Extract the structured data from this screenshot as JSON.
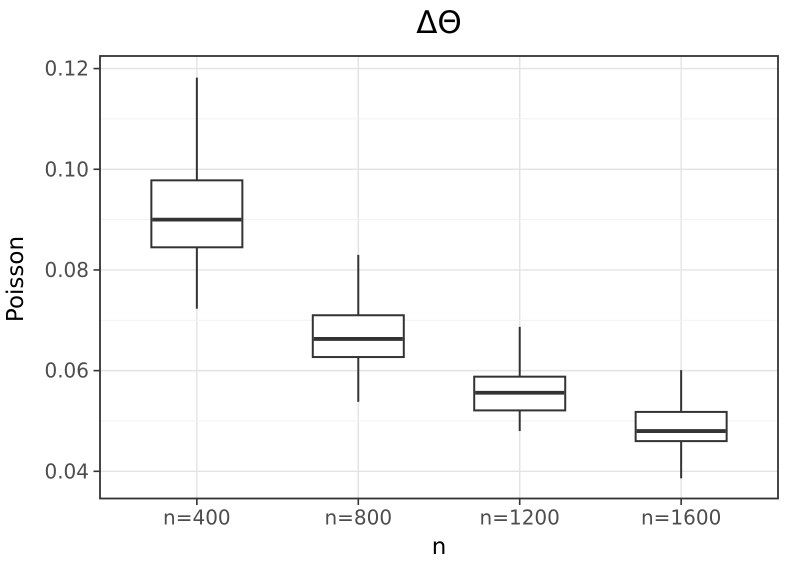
{
  "chart_data": {
    "type": "boxplot",
    "title": "ΔΘ",
    "xlabel": "n",
    "ylabel": "Poisson",
    "categories": [
      "n=400",
      "n=800",
      "n=1200",
      "n=1600"
    ],
    "ylim": [
      0.0346,
      0.1225
    ],
    "yticks": [
      0.04,
      0.06,
      0.08,
      0.1,
      0.12
    ],
    "ytick_labels": [
      "0.04",
      "0.06",
      "0.08",
      "0.10",
      "0.12"
    ],
    "yticks_minor": [
      0.05,
      0.07,
      0.09,
      0.11
    ],
    "grid": "horizontal major+minor, vertical major at categories",
    "legend": "none",
    "outliers": [],
    "series": [
      {
        "category": "n=400",
        "whisker_low": 0.0723,
        "q1": 0.0845,
        "median": 0.09,
        "q3": 0.0978,
        "whisker_high": 0.1182
      },
      {
        "category": "n=800",
        "whisker_low": 0.0538,
        "q1": 0.0627,
        "median": 0.0663,
        "q3": 0.071,
        "whisker_high": 0.083
      },
      {
        "category": "n=1200",
        "whisker_low": 0.048,
        "q1": 0.0521,
        "median": 0.0556,
        "q3": 0.0588,
        "whisker_high": 0.0687
      },
      {
        "category": "n=1600",
        "whisker_low": 0.0386,
        "q1": 0.046,
        "median": 0.048,
        "q3": 0.0518,
        "whisker_high": 0.0601
      }
    ],
    "colors": {
      "background": "#ffffff",
      "box_fill": "#ffffff",
      "box_stroke": "#333333",
      "panel_border": "#333333",
      "grid_major": "#e3e3e3",
      "grid_minor": "#f1f1f1",
      "tick_label": "#4d4d4d",
      "text": "#000000"
    }
  }
}
